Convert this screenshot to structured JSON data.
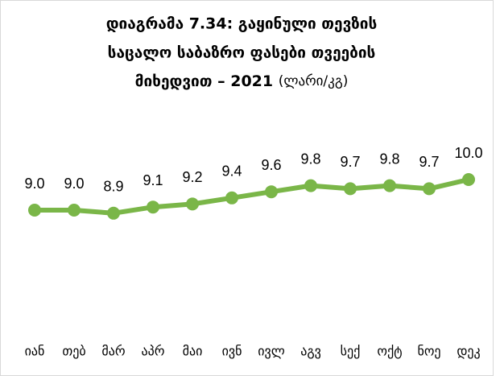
{
  "chart_data": {
    "type": "line",
    "title": [
      "დიაგრამა 7.34: გაყინული თევზის",
      "საცალო საბაზრო ფასები თვეების",
      "მიხედვით – 2021"
    ],
    "unit": "(ლარი/კგ)",
    "categories": [
      "იან",
      "თებ",
      "მარ",
      "აპრ",
      "მაი",
      "ივნ",
      "ივლ",
      "აგვ",
      "სექ",
      "ოქტ",
      "ნოე",
      "დეკ"
    ],
    "values": [
      9.0,
      9.0,
      8.9,
      9.1,
      9.2,
      9.4,
      9.6,
      9.8,
      9.7,
      9.8,
      9.7,
      10.0
    ],
    "value_labels": [
      "9.0",
      "9.0",
      "8.9",
      "9.1",
      "9.2",
      "9.4",
      "9.6",
      "9.8",
      "9.7",
      "9.8",
      "9.7",
      "10.0"
    ],
    "color": "#7ab648"
  }
}
